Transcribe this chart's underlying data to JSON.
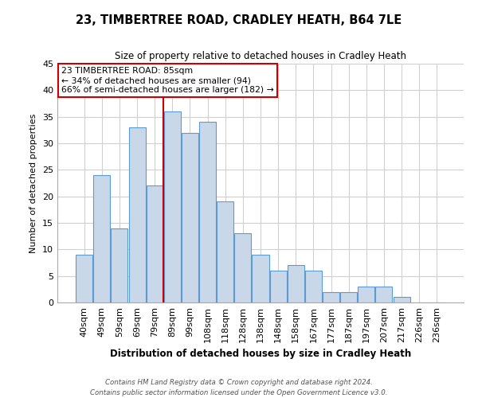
{
  "title": "23, TIMBERTREE ROAD, CRADLEY HEATH, B64 7LE",
  "subtitle": "Size of property relative to detached houses in Cradley Heath",
  "xlabel": "Distribution of detached houses by size in Cradley Heath",
  "ylabel": "Number of detached properties",
  "bin_labels": [
    "40sqm",
    "49sqm",
    "59sqm",
    "69sqm",
    "79sqm",
    "89sqm",
    "99sqm",
    "108sqm",
    "118sqm",
    "128sqm",
    "138sqm",
    "148sqm",
    "158sqm",
    "167sqm",
    "177sqm",
    "187sqm",
    "197sqm",
    "207sqm",
    "217sqm",
    "226sqm",
    "236sqm"
  ],
  "bar_heights": [
    9,
    24,
    14,
    33,
    22,
    36,
    32,
    34,
    19,
    13,
    9,
    6,
    7,
    6,
    2,
    2,
    3,
    3,
    1,
    0,
    0
  ],
  "bar_color": "#c8d8e8",
  "bar_edge_color": "#5b9bd5",
  "grid_color": "#d0d0d0",
  "background_color": "#ffffff",
  "vline_color": "#cc0000",
  "annotation_text_line1": "23 TIMBERTREE ROAD: 85sqm",
  "annotation_text_line2": "← 34% of detached houses are smaller (94)",
  "annotation_text_line3": "66% of semi-detached houses are larger (182) →",
  "annotation_border_color": "#cc0000",
  "ylim": [
    0,
    45
  ],
  "yticks": [
    0,
    5,
    10,
    15,
    20,
    25,
    30,
    35,
    40,
    45
  ],
  "footnote_line1": "Contains HM Land Registry data © Crown copyright and database right 2024.",
  "footnote_line2": "Contains public sector information licensed under the Open Government Licence v3.0."
}
